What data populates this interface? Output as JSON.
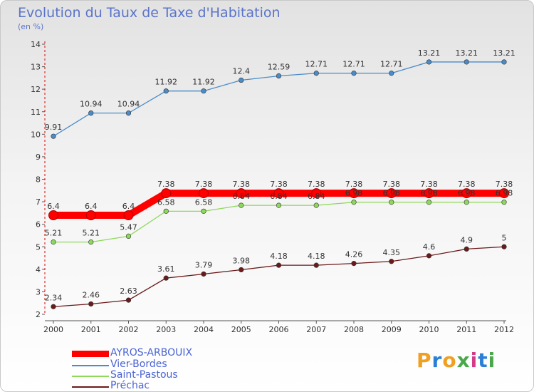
{
  "title": "Evolution du Taux de Taxe d'Habitation",
  "subtitle": "(en %)",
  "brand": {
    "text": "Proxiti",
    "letter_colors": [
      "#f0a020",
      "#2b7fd6",
      "#f0a020",
      "#4aa84a",
      "#d23a8a",
      "#2b7fd6",
      "#4aa84a"
    ]
  },
  "chart_data": {
    "type": "line",
    "x": [
      "2000",
      "2001",
      "2002",
      "2003",
      "2004",
      "2005",
      "2006",
      "2007",
      "2008",
      "2009",
      "2010",
      "2011",
      "2012"
    ],
    "ylim": [
      2,
      14
    ],
    "yticks": [
      "2",
      "3",
      "4",
      "5",
      "6",
      "7",
      "8",
      "9",
      "10",
      "11",
      "12",
      "13",
      "14"
    ],
    "grid": false,
    "legend_position": "bottom-left",
    "series": [
      {
        "name": "AYROS-ARBOUIX",
        "color": "#ff0000",
        "highlight": true,
        "values": [
          6.4,
          6.4,
          6.4,
          7.38,
          7.38,
          7.38,
          7.38,
          7.38,
          7.38,
          7.38,
          7.38,
          7.38,
          7.38
        ],
        "labels": [
          "6.4",
          "6.4",
          "6.4",
          "7.38",
          "7.38",
          "7.38",
          "7.38",
          "7.38",
          "7.38",
          "7.38",
          "7.38",
          "7.38",
          "7.38"
        ]
      },
      {
        "name": "Vier-Bordes",
        "color": "#4a8cc8",
        "values": [
          9.91,
          10.94,
          10.94,
          11.92,
          11.92,
          12.4,
          12.59,
          12.71,
          12.71,
          12.71,
          13.21,
          13.21,
          13.21
        ],
        "labels": [
          "9.91",
          "10.94",
          "10.94",
          "11.92",
          "11.92",
          "12.4",
          "12.59",
          "12.71",
          "12.71",
          "12.71",
          "13.21",
          "13.21",
          "13.21"
        ]
      },
      {
        "name": "Saint-Pastous",
        "color": "#8ed85a",
        "values": [
          5.21,
          5.21,
          5.47,
          6.58,
          6.58,
          6.84,
          6.84,
          6.84,
          6.98,
          6.98,
          6.98,
          6.98,
          6.98
        ],
        "labels": [
          "5.21",
          "5.21",
          "5.47",
          "6.58",
          "6.58",
          "6.84",
          "6.84",
          "6.84",
          "6.98",
          "6.98",
          "6.98",
          "6.98",
          "6.98"
        ]
      },
      {
        "name": "Préchac",
        "color": "#6b1a1a",
        "values": [
          2.34,
          2.46,
          2.63,
          3.61,
          3.79,
          3.98,
          4.18,
          4.18,
          4.26,
          4.35,
          4.6,
          4.9,
          5.0
        ],
        "labels": [
          "2.34",
          "2.46",
          "2.63",
          "3.61",
          "3.79",
          "3.98",
          "4.18",
          "4.18",
          "4.26",
          "4.35",
          "4.6",
          "4.9",
          "5"
        ]
      }
    ]
  }
}
